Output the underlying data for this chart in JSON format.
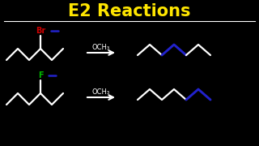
{
  "title": "E2 Reactions",
  "title_color": "#FFE600",
  "bg_color": "#000000",
  "br_label": "Br",
  "br_color": "#CC0000",
  "f_label": "F",
  "f_color": "#00BB00",
  "och3_label": "OCH₃",
  "och3_color": "#FFFFFF",
  "line_color": "#FFFFFF",
  "blue_color": "#2222CC",
  "arrow_color": "#FFFFFF",
  "figsize": [
    3.2,
    1.8
  ],
  "dpi": 100
}
